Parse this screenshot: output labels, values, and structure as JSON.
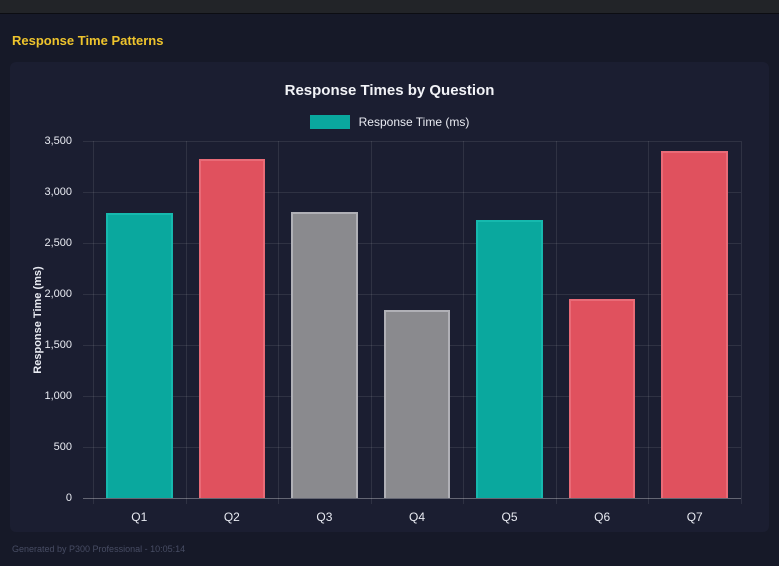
{
  "header": {
    "title": "Response Time Patterns"
  },
  "chart_data": {
    "type": "bar",
    "title": "Response Times by Question",
    "categories": [
      "Q1",
      "Q2",
      "Q3",
      "Q4",
      "Q5",
      "Q6",
      "Q7"
    ],
    "values": [
      2790,
      3320,
      2805,
      1845,
      2725,
      1950,
      3405
    ],
    "bar_colors": [
      "#0aa89e",
      "#e0515e",
      "#8a8a8e",
      "#8a8a8e",
      "#0aa89e",
      "#e0515e",
      "#e0515e"
    ],
    "bar_border_colors": [
      "#16b9ae",
      "#e96b77",
      "#b0b0b6",
      "#b0b0b6",
      "#16b9ae",
      "#e96b77",
      "#e96b77"
    ],
    "xlabel": "",
    "ylabel": "Response Time (ms)",
    "ylim": [
      0,
      3500
    ],
    "ytick_step": 500,
    "ytick_labels": [
      "0",
      "500",
      "1,000",
      "1,500",
      "2,000",
      "2,500",
      "3,000",
      "3,500"
    ],
    "grid": true,
    "legend_position": "top",
    "legend": [
      {
        "label": "Response Time (ms)",
        "color": "#0aa89e"
      }
    ]
  },
  "footer": {
    "text": "Generated by P300 Professional - 10:05:14"
  },
  "colors": {
    "page_background": "#161928",
    "card_background": "#1b1e31",
    "topbar_background": "#222428",
    "header_accent": "#eec42d",
    "teal": "#0aa89e",
    "red": "#e0515e",
    "gray": "#8a8a8e"
  }
}
